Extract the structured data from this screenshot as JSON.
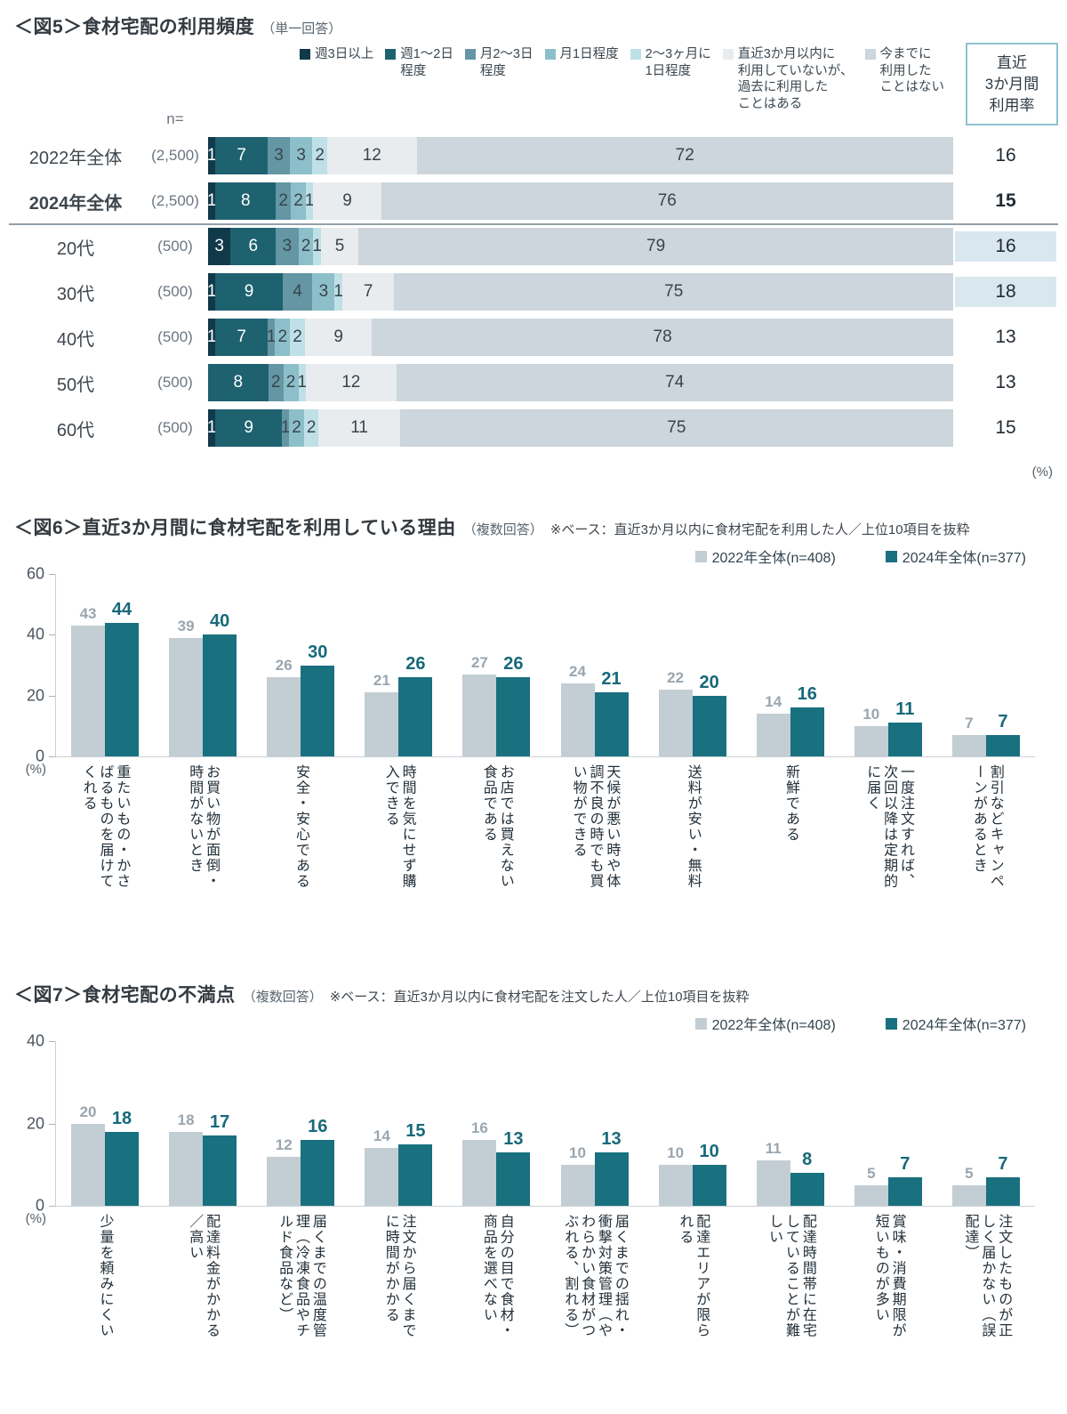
{
  "colors": {
    "stack_colors": [
      "#11394a",
      "#1e6270",
      "#6496a4",
      "#8dbfca",
      "#bfe0e6",
      "#e8ecee",
      "#ccd6dc"
    ],
    "bar_2022": "#c3cdd4",
    "bar_2024": "#19707f",
    "value_label_2022": "#9aa6af",
    "value_label_2024": "#17697a",
    "rate_highlight_bg": "#d9e7ee",
    "rate_box_border": "#8ec2d2"
  },
  "fig5": {
    "title": "＜図5＞食材宅配の利用頻度",
    "subtitle": "（単一回答）",
    "n_header": "n=",
    "unit": "(%)",
    "rate_box_label": "直近\n3か月間\n利用率",
    "legend": [
      "週3日以上",
      "週1～2日\n程度",
      "月2～3日\n程度",
      "月1日程度",
      "2～3ヶ月に\n1日程度",
      "直近3か月以内に\n利用していないが、\n過去に利用した\nことはある",
      "今までに\n利用した\nことはない"
    ]
  },
  "fig6": {
    "title": "＜図6＞直近3か月間に食材宅配を利用している理由",
    "subtitle": "（複数回答）",
    "note": "※ベース：直近3か月以内に食材宅配を利用した人／上位10項目を抜粋",
    "legend": [
      "2022年全体(n=408)",
      "2024年全体(n=377)"
    ],
    "unit": "(%)"
  },
  "fig7": {
    "title": "＜図7＞食材宅配の不満点",
    "subtitle": "（複数回答）",
    "note": "※ベース：直近3か月以内に食材宅配を注文した人／上位10項目を抜粋",
    "legend": [
      "2022年全体(n=408)",
      "2024年全体(n=377)"
    ],
    "unit": "(%)"
  },
  "chart_data": [
    {
      "id": "fig5",
      "type": "bar",
      "variant": "stacked-horizontal",
      "title": "食材宅配の利用頻度（単一回答）",
      "categories": [
        "2022年全体",
        "2024年全体",
        "20代",
        "30代",
        "40代",
        "50代",
        "60代"
      ],
      "n_labels": [
        "(2,500)",
        "(2,500)",
        "(500)",
        "(500)",
        "(500)",
        "(500)",
        "(500)"
      ],
      "series": [
        {
          "name": "週3日以上",
          "values": [
            1,
            1,
            3,
            1,
            1,
            0,
            1
          ]
        },
        {
          "name": "週1～2日程度",
          "values": [
            7,
            8,
            6,
            9,
            7,
            8,
            9
          ]
        },
        {
          "name": "月2～3日程度",
          "values": [
            3,
            2,
            3,
            4,
            1,
            2,
            1
          ]
        },
        {
          "name": "月1日程度",
          "values": [
            3,
            2,
            2,
            3,
            2,
            2,
            2
          ]
        },
        {
          "name": "2～3ヶ月に1日程度",
          "values": [
            2,
            1,
            1,
            1,
            2,
            1,
            2
          ]
        },
        {
          "name": "直近3か月以内に利用していないが、過去に利用したことはある",
          "values": [
            12,
            9,
            5,
            7,
            9,
            12,
            11
          ]
        },
        {
          "name": "今までに利用したことはない",
          "values": [
            72,
            76,
            79,
            75,
            78,
            74,
            75
          ]
        }
      ],
      "rate_column": {
        "header": "直近3か月間利用率",
        "values": [
          16,
          15,
          16,
          18,
          13,
          13,
          15
        ],
        "bold_index": 1,
        "highlight_indices": [
          2,
          3
        ]
      },
      "bold_category_index": 1,
      "separator_after_index": 1,
      "xlim": [
        0,
        100
      ]
    },
    {
      "id": "fig6",
      "type": "bar",
      "variant": "grouped-vertical",
      "title": "直近3か月間に食材宅配を利用している理由（複数回答）",
      "ylim": [
        0,
        60
      ],
      "yticks": [
        0,
        20,
        40,
        60
      ],
      "unit": "(%)",
      "legend_position": "top-right",
      "categories": [
        "重たいもの・かさばるものを届けてくれる",
        "お買い物が面倒・時間がないとき",
        "安全・安心である",
        "時間を気にせず購入できる",
        "お店では買えない食品である",
        "天候が悪い時や体調不良の時でも買い物ができる",
        "送料が安い・無料",
        "新鮮である",
        "一度注文すれば、次回以降は定期的に届く",
        "割引などキャンペーンがあるとき"
      ],
      "series": [
        {
          "name": "2022年全体(n=408)",
          "values": [
            43,
            39,
            26,
            21,
            27,
            24,
            22,
            14,
            10,
            7
          ]
        },
        {
          "name": "2024年全体(n=377)",
          "values": [
            44,
            40,
            30,
            26,
            26,
            21,
            20,
            16,
            11,
            7
          ]
        }
      ]
    },
    {
      "id": "fig7",
      "type": "bar",
      "variant": "grouped-vertical",
      "title": "食材宅配の不満点（複数回答）",
      "ylim": [
        0,
        40
      ],
      "yticks": [
        0,
        20,
        40
      ],
      "unit": "(%)",
      "legend_position": "top-right",
      "categories": [
        "少量を頼みにくい",
        "配達料金がかかる／高い",
        "届くまでの温度管理（冷凍食品やチルド食品など）",
        "注文から届くまでに時間がかかる",
        "自分の目で食材・商品を選べない",
        "届くまでの揺れ・衝撃対策管理（やわらかい食材がつぶれる、割れる）",
        "配達エリアが限られる",
        "配達時間帯に在宅していることが難しい",
        "賞味・消費期限が短いものが多い",
        "注文したものが正しく届かない（誤配達）"
      ],
      "series": [
        {
          "name": "2022年全体(n=408)",
          "values": [
            20,
            18,
            12,
            14,
            16,
            10,
            10,
            11,
            5,
            5
          ]
        },
        {
          "name": "2024年全体(n=377)",
          "values": [
            18,
            17,
            16,
            15,
            13,
            13,
            10,
            8,
            7,
            7
          ]
        }
      ]
    }
  ]
}
